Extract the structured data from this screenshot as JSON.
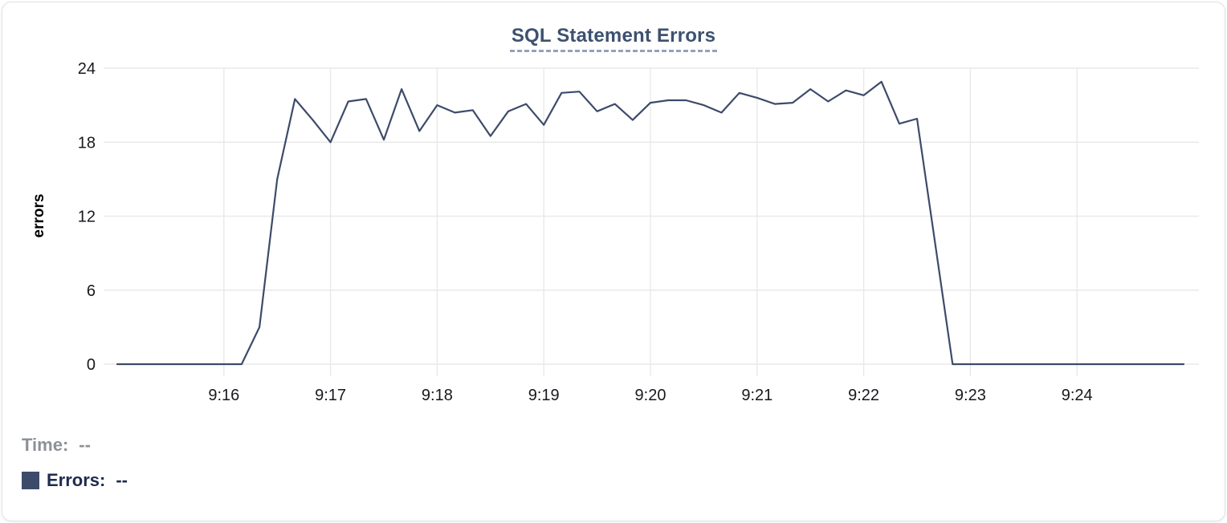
{
  "chart_data": {
    "type": "line",
    "title": "SQL Statement Errors",
    "ylabel": "errors",
    "ylim": [
      0,
      24
    ],
    "y_ticks": [
      0,
      6,
      12,
      18,
      24
    ],
    "x_ticks": [
      {
        "t_sec": 60,
        "label": "9:16"
      },
      {
        "t_sec": 120,
        "label": "9:17"
      },
      {
        "t_sec": 180,
        "label": "9:18"
      },
      {
        "t_sec": 240,
        "label": "9:19"
      },
      {
        "t_sec": 300,
        "label": "9:20"
      },
      {
        "t_sec": 360,
        "label": "9:21"
      },
      {
        "t_sec": 420,
        "label": "9:22"
      },
      {
        "t_sec": 480,
        "label": "9:23"
      },
      {
        "t_sec": 540,
        "label": "9:24"
      }
    ],
    "x_start": "9:15:00",
    "x_end": "9:25:00",
    "x_step_sec": 10,
    "grid": true,
    "legend_position": "bottom-left",
    "series": [
      {
        "name": "Errors",
        "color": "#3d4b6a",
        "values": [
          0,
          0,
          0,
          0,
          0,
          0,
          0,
          0,
          3,
          15,
          21.5,
          19.8,
          18,
          21.3,
          21.5,
          18.2,
          22.3,
          18.9,
          21,
          20.4,
          20.6,
          18.5,
          20.5,
          21.1,
          19.4,
          22,
          22.1,
          20.5,
          21.1,
          19.8,
          21.2,
          21.4,
          21.4,
          21,
          20.4,
          22,
          21.6,
          21.1,
          21.2,
          22.3,
          21.3,
          22.2,
          21.8,
          22.9,
          19.5,
          19.9,
          10,
          0,
          0,
          0,
          0,
          0,
          0,
          0,
          0,
          0,
          0,
          0,
          0,
          0,
          0
        ]
      }
    ],
    "legend": [
      {
        "label": "Time:",
        "value": "--"
      },
      {
        "label": "Errors:",
        "value": "--",
        "swatch": "#3d4b6a"
      }
    ]
  },
  "colors": {
    "title": "#3d516f",
    "title_underline": "#93a2bd",
    "grid": "#e9e9e9",
    "tick_text": "#17191d",
    "time_label": "#8d9197",
    "errors_label": "#1e2b4d",
    "line": "#3d4b6a",
    "card_border": "#e2e2e6",
    "background": "#ffffff"
  }
}
